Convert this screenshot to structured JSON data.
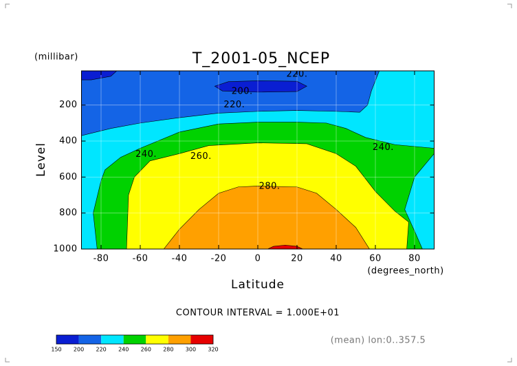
{
  "chart_data": {
    "type": "contour",
    "title": "T_2001-05_NCEP",
    "y_unit": "(millibar)",
    "ylabel": "Level",
    "xlabel": "Latitude",
    "x_unit": "(degrees_north)",
    "xlim": [
      -90,
      90
    ],
    "ylim": [
      1000,
      10
    ],
    "xticks": [
      -80,
      -60,
      -40,
      -20,
      0,
      20,
      40,
      60,
      80
    ],
    "yticks": [
      200,
      400,
      600,
      800,
      1000
    ],
    "grid": true,
    "contour_interval": "CONTOUR INTERVAL = 1.000E+01",
    "footnote": "(mean) lon:0..357.5",
    "levels": [
      150,
      200,
      220,
      240,
      260,
      280,
      300,
      320
    ],
    "colors": [
      "#0a1ed2",
      "#1464e6",
      "#00e6ff",
      "#00d200",
      "#ffff00",
      "#ffa000",
      "#e60000"
    ],
    "regions": [
      {
        "min": 220,
        "points": [
          [
            -90,
            10
          ],
          [
            90,
            10
          ],
          [
            90,
            1000
          ],
          [
            -90,
            1000
          ]
        ]
      },
      {
        "min": 200,
        "points": [
          [
            -90,
            10
          ],
          [
            62,
            10
          ],
          [
            58,
            120
          ],
          [
            56,
            200
          ],
          [
            52,
            240
          ],
          [
            40,
            235
          ],
          [
            20,
            230
          ],
          [
            0,
            235
          ],
          [
            -20,
            245
          ],
          [
            -40,
            270
          ],
          [
            -60,
            300
          ],
          [
            -75,
            330
          ],
          [
            -90,
            370
          ]
        ]
      },
      {
        "min": 150,
        "points": [
          [
            -90,
            10
          ],
          [
            -72,
            10
          ],
          [
            -75,
            40
          ],
          [
            -85,
            60
          ],
          [
            -90,
            60
          ]
        ]
      },
      {
        "min": 150,
        "points": [
          [
            -22,
            95
          ],
          [
            -15,
            70
          ],
          [
            0,
            65
          ],
          [
            20,
            68
          ],
          [
            25,
            95
          ],
          [
            20,
            125
          ],
          [
            0,
            128
          ],
          [
            -18,
            122
          ]
        ]
      },
      {
        "min": 240,
        "points": [
          [
            -82,
            1000
          ],
          [
            -84,
            800
          ],
          [
            -80,
            620
          ],
          [
            -78,
            560
          ],
          [
            -70,
            490
          ],
          [
            -60,
            440
          ],
          [
            -40,
            350
          ],
          [
            -20,
            305
          ],
          [
            0,
            295
          ],
          [
            20,
            295
          ],
          [
            35,
            300
          ],
          [
            45,
            330
          ],
          [
            55,
            380
          ],
          [
            70,
            420
          ],
          [
            90,
            440
          ],
          [
            90,
            470
          ],
          [
            80,
            600
          ],
          [
            75,
            780
          ],
          [
            80,
            900
          ],
          [
            84,
            1000
          ]
        ]
      },
      {
        "min": 260,
        "points": [
          [
            -67,
            1000
          ],
          [
            -66,
            700
          ],
          [
            -63,
            600
          ],
          [
            -55,
            510
          ],
          [
            -40,
            470
          ],
          [
            -25,
            425
          ],
          [
            0,
            410
          ],
          [
            25,
            415
          ],
          [
            40,
            470
          ],
          [
            50,
            540
          ],
          [
            60,
            680
          ],
          [
            70,
            790
          ],
          [
            77,
            850
          ],
          [
            76,
            1000
          ]
        ]
      },
      {
        "min": 280,
        "points": [
          [
            -48,
            1000
          ],
          [
            -40,
            890
          ],
          [
            -30,
            780
          ],
          [
            -20,
            690
          ],
          [
            -10,
            655
          ],
          [
            0,
            650
          ],
          [
            20,
            655
          ],
          [
            30,
            690
          ],
          [
            40,
            780
          ],
          [
            50,
            880
          ],
          [
            57,
            1000
          ]
        ]
      },
      {
        "min": 300,
        "points": [
          [
            5,
            1000
          ],
          [
            8,
            985
          ],
          [
            14,
            978
          ],
          [
            20,
            985
          ],
          [
            23,
            1000
          ]
        ]
      }
    ],
    "contour_labels": [
      {
        "x": 20,
        "y": 30,
        "value": 220,
        "label": "220."
      },
      {
        "x": -8,
        "y": 124,
        "value": 200,
        "label": "200."
      },
      {
        "x": -12,
        "y": 200,
        "value": 220,
        "label": "220."
      },
      {
        "x": -57,
        "y": 474,
        "value": 240,
        "label": "240."
      },
      {
        "x": -29,
        "y": 486,
        "value": 260,
        "label": "260."
      },
      {
        "x": 6,
        "y": 653,
        "value": 280,
        "label": "280."
      },
      {
        "x": 64,
        "y": 436,
        "value": 240,
        "label": "240."
      }
    ]
  }
}
